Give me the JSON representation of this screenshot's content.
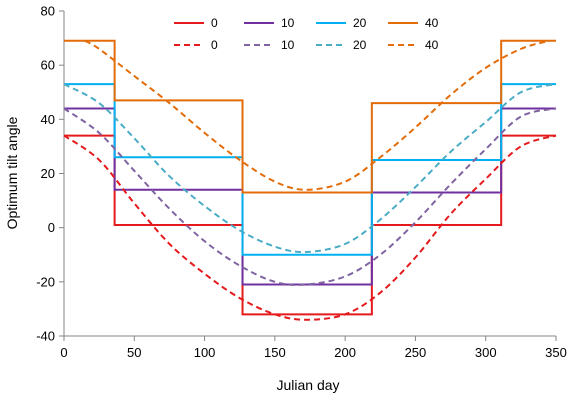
{
  "chart_data": {
    "type": "line",
    "xlabel": "Julian day",
    "ylabel": "Optimum tilt angle",
    "xlim": [
      0,
      350
    ],
    "ylim": [
      -40,
      80
    ],
    "x_ticks": [
      "0",
      "50",
      "100",
      "150",
      "200",
      "250",
      "300",
      "350"
    ],
    "y_ticks": [
      "-40",
      "-20",
      "0",
      "20",
      "40",
      "60",
      "80"
    ],
    "grid": false,
    "legend_placement": "top-center",
    "series": [
      {
        "name": "0",
        "style": "solid",
        "color": "#e41a1c",
        "x": [
          0,
          36,
          36,
          127,
          127,
          219,
          219,
          311,
          311,
          350
        ],
        "y": [
          34,
          34,
          1,
          1,
          -32,
          -32,
          1,
          1,
          34,
          34
        ]
      },
      {
        "name": "10",
        "style": "solid",
        "color": "#7030a0",
        "x": [
          0,
          36,
          36,
          127,
          127,
          219,
          219,
          311,
          311,
          350
        ],
        "y": [
          44,
          44,
          14,
          14,
          -21,
          -21,
          13,
          13,
          44,
          44
        ]
      },
      {
        "name": "20",
        "style": "solid",
        "color": "#00b0f0",
        "x": [
          0,
          36,
          36,
          127,
          127,
          219,
          219,
          311,
          311,
          350
        ],
        "y": [
          53,
          53,
          26,
          26,
          -10,
          -10,
          25,
          25,
          53,
          53
        ]
      },
      {
        "name": "40",
        "style": "solid",
        "color": "#e36c09",
        "x": [
          0,
          36,
          36,
          127,
          127,
          219,
          219,
          311,
          311,
          350
        ],
        "y": [
          69,
          69,
          47,
          47,
          13,
          13,
          46,
          46,
          69,
          69
        ]
      },
      {
        "name": "0",
        "style": "dashed",
        "color": "#e41a1c",
        "x": [
          0,
          25,
          50,
          75,
          100,
          125,
          150,
          172,
          200,
          225,
          250,
          275,
          300,
          325,
          350
        ],
        "y": [
          34,
          25,
          9,
          -6,
          -17,
          -26,
          -32,
          -34,
          -32,
          -24,
          -11,
          5,
          18,
          30,
          34
        ]
      },
      {
        "name": "10",
        "style": "dashed",
        "color": "#8064a2",
        "x": [
          0,
          25,
          50,
          75,
          100,
          125,
          150,
          172,
          200,
          225,
          250,
          275,
          300,
          325,
          350
        ],
        "y": [
          44,
          35,
          21,
          7,
          -5,
          -14,
          -20,
          -21,
          -18,
          -10,
          2,
          16,
          29,
          41,
          44
        ]
      },
      {
        "name": "20",
        "style": "dashed",
        "color": "#4bacc6",
        "x": [
          0,
          25,
          50,
          75,
          100,
          125,
          150,
          172,
          200,
          225,
          250,
          275,
          300,
          325,
          350
        ],
        "y": [
          53,
          46,
          33,
          19,
          8,
          -1,
          -7,
          -9,
          -6,
          3,
          15,
          28,
          39,
          50,
          53
        ]
      },
      {
        "name": "40",
        "style": "dashed",
        "color": "#e36c09",
        "x": [
          15,
          25,
          50,
          75,
          100,
          125,
          150,
          172,
          200,
          225,
          250,
          275,
          300,
          325,
          345
        ],
        "y": [
          69,
          66,
          56,
          46,
          35,
          25,
          17,
          14,
          17,
          26,
          37,
          49,
          59,
          66,
          69
        ]
      }
    ]
  }
}
